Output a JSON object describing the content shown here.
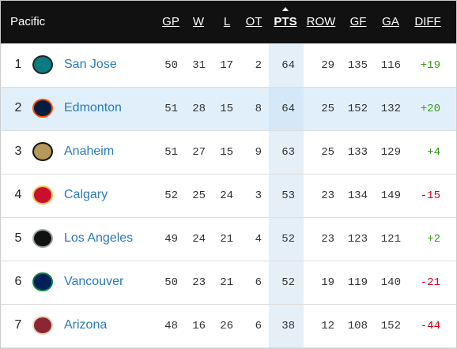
{
  "header": {
    "division": "Pacific",
    "columns": [
      "GP",
      "W",
      "L",
      "OT",
      "PTS",
      "ROW",
      "GF",
      "GA",
      "DIFF"
    ]
  },
  "rows": [
    [
      1,
      "San Jose",
      50,
      31,
      17,
      2,
      64,
      29,
      135,
      116,
      "+19"
    ],
    [
      2,
      "Edmonton",
      51,
      28,
      15,
      8,
      64,
      25,
      152,
      132,
      "+20"
    ],
    [
      3,
      "Anaheim",
      51,
      27,
      15,
      9,
      63,
      25,
      133,
      129,
      "+4"
    ],
    [
      4,
      "Calgary",
      52,
      25,
      24,
      3,
      53,
      23,
      134,
      149,
      "-15"
    ],
    [
      5,
      "Los Angeles",
      49,
      24,
      21,
      4,
      52,
      23,
      123,
      121,
      "+2"
    ],
    [
      6,
      "Vancouver",
      50,
      23,
      21,
      6,
      52,
      19,
      119,
      140,
      "-21"
    ],
    [
      7,
      "Arizona",
      48,
      16,
      26,
      6,
      38,
      12,
      108,
      152,
      "-44"
    ]
  ]
}
